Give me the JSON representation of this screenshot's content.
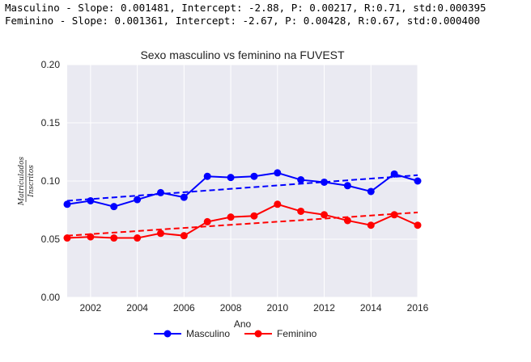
{
  "stats": {
    "line1": "Masculino - Slope: 0.001481, Intercept: -2.88, P: 0.00217, R:0.71, std:0.000395",
    "line2": "Feminino - Slope: 0.001361, Intercept: -2.67, P: 0.00428, R:0.67, std:0.000400"
  },
  "chart_data": {
    "type": "line",
    "title": "Sexo masculino vs feminino na FUVEST",
    "xlabel": "Ano",
    "ylabel_numerator": "Matriculados",
    "ylabel_denominator": "Inscritos",
    "xlim": [
      2001,
      2016
    ],
    "ylim": [
      0.0,
      0.2
    ],
    "xticks": [
      "2002",
      "2004",
      "2006",
      "2008",
      "2010",
      "2012",
      "2014",
      "2016"
    ],
    "yticks": [
      "0.00",
      "0.05",
      "0.10",
      "0.15",
      "0.20"
    ],
    "x": [
      2001,
      2002,
      2003,
      2004,
      2005,
      2006,
      2007,
      2008,
      2009,
      2010,
      2011,
      2012,
      2013,
      2014,
      2015,
      2016
    ],
    "series": [
      {
        "name": "Masculino",
        "color": "#0000ff",
        "values": [
          0.08,
          0.083,
          0.078,
          0.084,
          0.09,
          0.086,
          0.104,
          0.103,
          0.104,
          0.107,
          0.101,
          0.099,
          0.096,
          0.091,
          0.106,
          0.1
        ],
        "trend": [
          0.083,
          0.105
        ]
      },
      {
        "name": "Feminino",
        "color": "#ff0000",
        "values": [
          0.051,
          0.052,
          0.051,
          0.051,
          0.055,
          0.053,
          0.065,
          0.069,
          0.07,
          0.08,
          0.074,
          0.071,
          0.066,
          0.062,
          0.071,
          0.062
        ],
        "trend": [
          0.053,
          0.073
        ]
      }
    ],
    "grid": true,
    "legend": "bottom-center"
  }
}
